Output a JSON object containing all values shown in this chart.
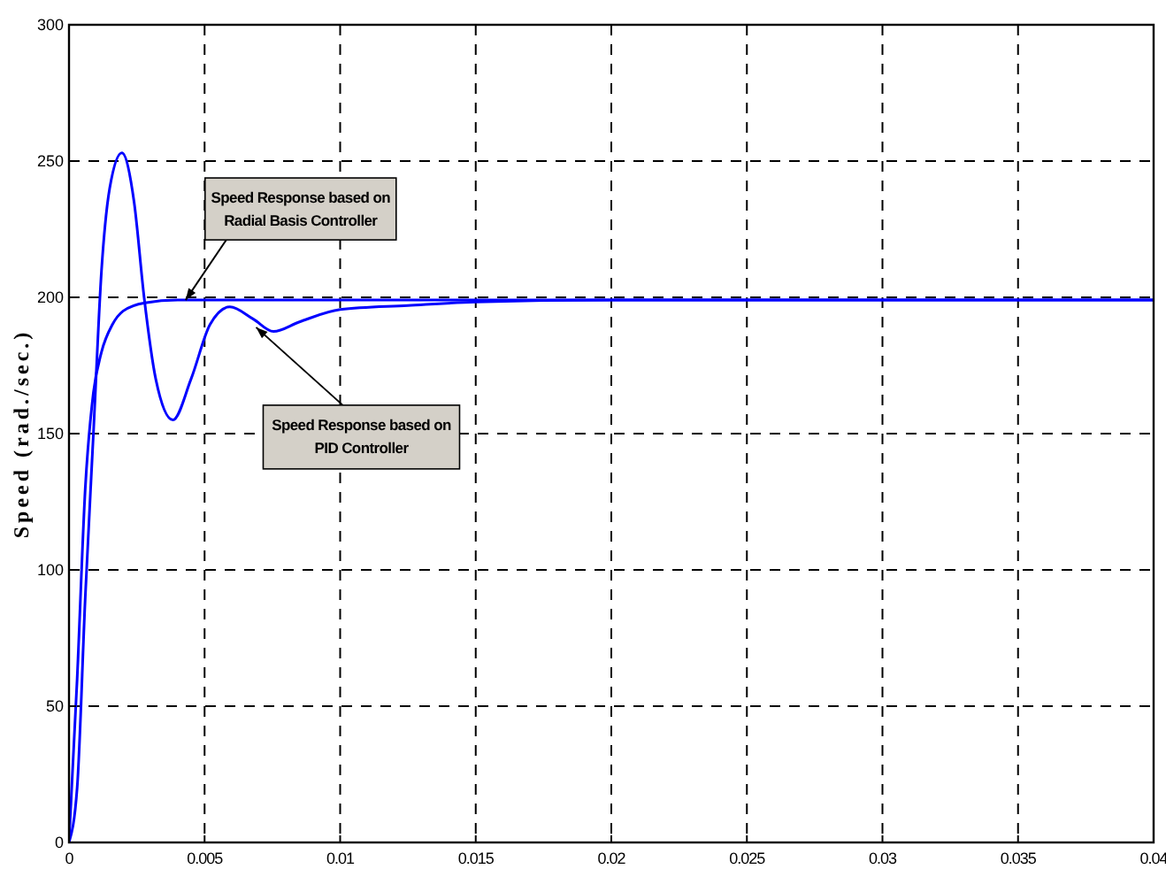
{
  "chart_data": {
    "type": "line",
    "ylabel": "Speed (rad./sec.)",
    "xlim": [
      0,
      0.04
    ],
    "ylim": [
      0,
      300
    ],
    "xticks": [
      0,
      0.005,
      0.01,
      0.015,
      0.02,
      0.025,
      0.03,
      0.035,
      0.04
    ],
    "yticks": [
      0,
      50,
      100,
      150,
      200,
      250,
      300
    ],
    "grid": true,
    "line_style": "solid",
    "series": [
      {
        "color": "#0000ff",
        "x": [
          0,
          0.0003,
          0.0006,
          0.0009,
          0.0012,
          0.0016,
          0.002,
          0.0028,
          0.004,
          0.01,
          0.02,
          0.04
        ],
        "values": [
          0,
          60,
          130,
          165,
          180,
          190,
          195,
          198,
          199,
          199,
          199,
          199
        ]
      },
      {
        "color": "#0000ff",
        "x": [
          0,
          0.0003,
          0.0006,
          0.0009,
          0.0012,
          0.0015,
          0.00195,
          0.0024,
          0.00277,
          0.0032,
          0.00383,
          0.0045,
          0.0052,
          0.00593,
          0.0068,
          0.00754,
          0.0085,
          0.01,
          0.0125,
          0.015,
          0.02,
          0.04
        ],
        "values": [
          0,
          20,
          90,
          150,
          210,
          240,
          253,
          235,
          200,
          170,
          155,
          170,
          190,
          196.5,
          192,
          187.5,
          191,
          195.5,
          197,
          198.3,
          199,
          199
        ]
      }
    ],
    "annotations": [
      {
        "text": "Speed Response based on\nRadial Basis Controller",
        "x": 0.0043,
        "y": 199
      },
      {
        "text": "Speed Response based on\nPID Controller",
        "x": 0.0069,
        "y": 189
      }
    ]
  }
}
